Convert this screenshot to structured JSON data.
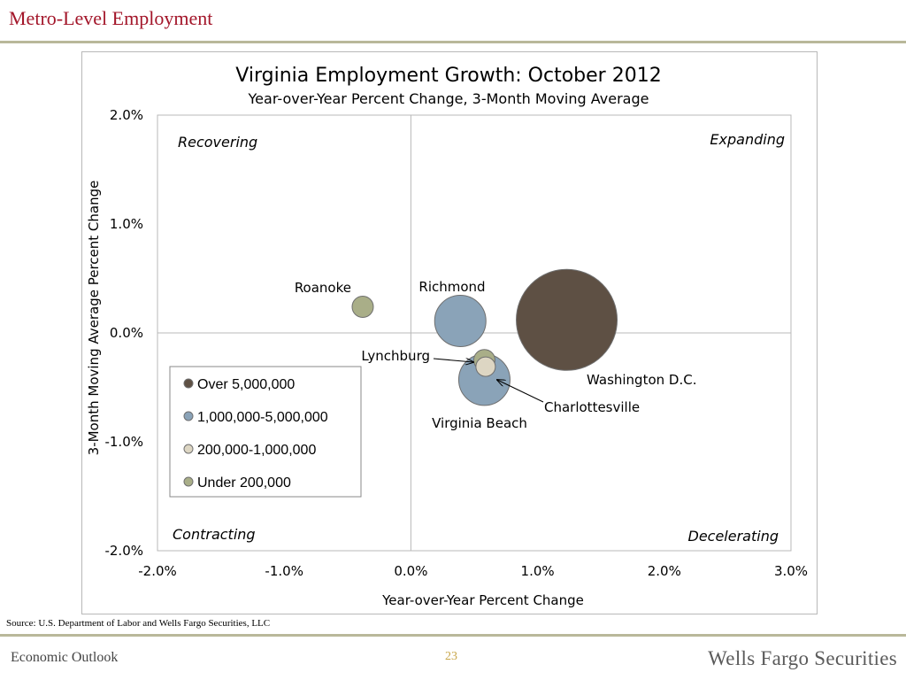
{
  "header": {
    "title": "Metro-Level Employment"
  },
  "footer": {
    "left": "Economic Outlook",
    "page_number": "23",
    "brand": "Wells Fargo Securities"
  },
  "source": "Source: U.S. Department of Labor  and Wells Fargo Securities, LLC",
  "chart_data": {
    "type": "scatter",
    "title": "Virginia Employment Growth: October 2012",
    "subtitle": "Year-over-Year Percent Change, 3-Month Moving Average",
    "xlabel": "Year-over-Year Percent Change",
    "ylabel": "3-Month Moving Average Percent Change",
    "xlim": [
      -2.0,
      3.0
    ],
    "ylim": [
      -2.0,
      2.0
    ],
    "x_ticks": [
      "-2.0%",
      "-1.0%",
      "0.0%",
      "1.0%",
      "2.0%",
      "3.0%"
    ],
    "y_ticks": [
      "2.0%",
      "1.0%",
      "0.0%",
      "-1.0%",
      "-2.0%"
    ],
    "quadrant_labels": {
      "top_left": "Recovering",
      "top_right": "Expanding",
      "bottom_left": "Contracting",
      "bottom_right": "Decelerating"
    },
    "categories": [
      {
        "name": "Over 5,000,000",
        "color": "#5e5044"
      },
      {
        "name": "1,000,000-5,000,000",
        "color": "#8aa3b8"
      },
      {
        "name": "200,000-1,000,000",
        "color": "#ddd6c3"
      },
      {
        "name": "Under 200,000",
        "color": "#a9ae88"
      }
    ],
    "points": [
      {
        "name": "Washington D.C.",
        "x": 1.23,
        "y": 0.12,
        "category": "Over 5,000,000",
        "label_anchor": "start"
      },
      {
        "name": "Richmond",
        "x": 0.39,
        "y": 0.11,
        "category": "1,000,000-5,000,000",
        "label_anchor": "middle"
      },
      {
        "name": "Virginia Beach",
        "x": 0.58,
        "y": -0.43,
        "category": "1,000,000-5,000,000",
        "label_anchor": "middle"
      },
      {
        "name": "Charlottesville",
        "x": 0.59,
        "y": -0.31,
        "category": "200,000-1,000,000",
        "label_anchor": "start"
      },
      {
        "name": "Lynchburg",
        "x": 0.58,
        "y": -0.25,
        "category": "Under 200,000",
        "label_anchor": "end"
      },
      {
        "name": "Roanoke",
        "x": -0.38,
        "y": 0.24,
        "category": "Under 200,000",
        "label_anchor": "end"
      }
    ]
  }
}
